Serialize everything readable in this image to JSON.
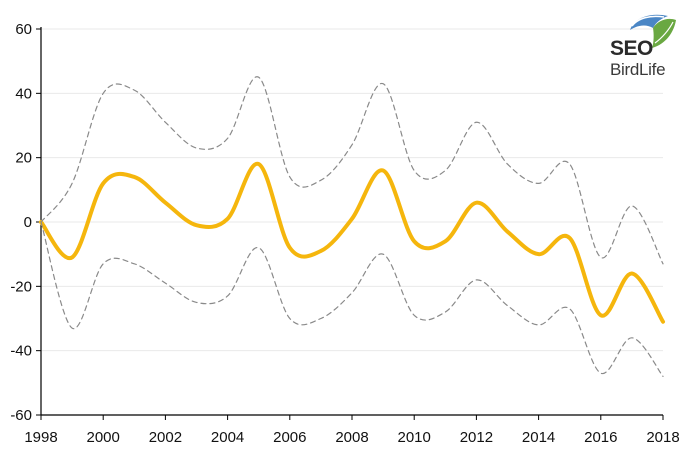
{
  "logo": {
    "line1": "SEO",
    "line2": "BirdLife"
  },
  "colors": {
    "trend": "#F5B60D",
    "ci": "#8a8a8a",
    "axis": "#000000",
    "grid": "#e9e9e9"
  },
  "chart_data": {
    "type": "line",
    "x": [
      1998,
      1999,
      2000,
      2001,
      2002,
      2003,
      2004,
      2005,
      2006,
      2007,
      2008,
      2009,
      2010,
      2011,
      2012,
      2013,
      2014,
      2015,
      2016,
      2017,
      2018
    ],
    "series": [
      {
        "role": "trend",
        "values": [
          0,
          -11,
          12,
          14,
          6,
          -1,
          1,
          18,
          -8,
          -9,
          1,
          16,
          -6,
          -6,
          6,
          -3,
          -10,
          -5,
          -29,
          -16,
          -31
        ]
      },
      {
        "role": "upper-ci",
        "values": [
          0,
          12,
          40,
          41,
          31,
          23,
          26,
          45,
          14,
          13,
          24,
          43,
          16,
          16,
          31,
          18,
          12,
          18,
          -11,
          5,
          -13
        ]
      },
      {
        "role": "lower-ci",
        "values": [
          0,
          -33,
          -13,
          -13,
          -19,
          -25,
          -23,
          -8,
          -30,
          -30,
          -22,
          -10,
          -29,
          -28,
          -18,
          -26,
          -32,
          -27,
          -47,
          -36,
          -48
        ]
      }
    ],
    "xlim": [
      1998,
      2018
    ],
    "ylim": [
      -60,
      60
    ],
    "x_ticks": [
      "1998",
      "2000",
      "2002",
      "2004",
      "2006",
      "2008",
      "2010",
      "2012",
      "2014",
      "2016",
      "2018"
    ],
    "y_ticks": [
      "60",
      "40",
      "20",
      "0",
      "-20",
      "-40",
      "-60"
    ],
    "grid": true,
    "title": "",
    "xlabel": "",
    "ylabel": ""
  }
}
